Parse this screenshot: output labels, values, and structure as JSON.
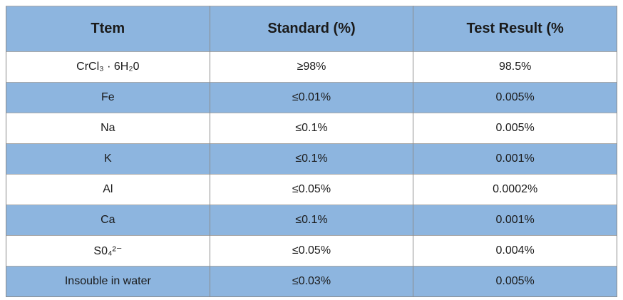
{
  "table": {
    "header": [
      "Ttem",
      "Standard (%)",
      "Test Result (%"
    ],
    "rows": [
      [
        "CrCl₃ · 6H₂0",
        "≥98%",
        "98.5%"
      ],
      [
        "Fe",
        "≤0.01%",
        "0.005%"
      ],
      [
        "Na",
        "≤0.1%",
        "0.005%"
      ],
      [
        "K",
        "≤0.1%",
        "0.001%"
      ],
      [
        "Al",
        "≤0.05%",
        "0.0002%"
      ],
      [
        "Ca",
        "≤0.1%",
        "0.001%"
      ],
      [
        "S0₄²⁻",
        "≤0.05%",
        "0.004%"
      ],
      [
        "Insouble in water",
        "≤0.03%",
        "0.005%"
      ]
    ]
  }
}
